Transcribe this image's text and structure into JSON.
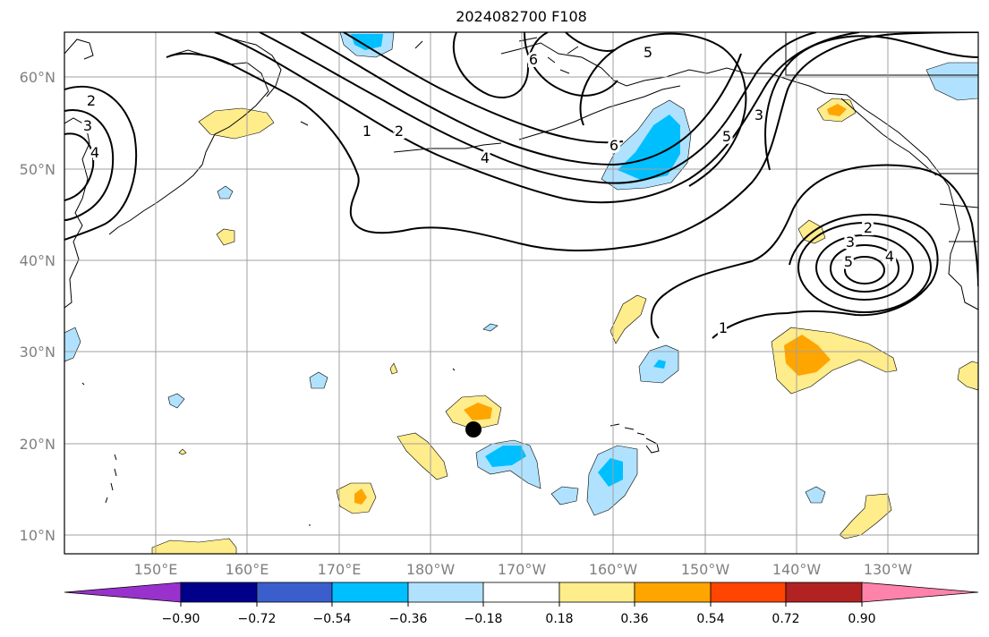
{
  "title": "2024082700 F108",
  "map": {
    "lat_labels": [
      "60°N",
      "50°N",
      "40°N",
      "30°N",
      "20°N",
      "10°N"
    ],
    "lon_labels": [
      "150°E",
      "160°E",
      "170°E",
      "180°W",
      "170°W",
      "160°W",
      "150°W",
      "140°W",
      "130°W"
    ],
    "contour_labels": [
      "2",
      "3",
      "4",
      "1",
      "2",
      "4",
      "6",
      "6",
      "5",
      "5",
      "3",
      "2",
      "3",
      "4",
      "5",
      "1"
    ],
    "gridlines": true,
    "marker": "storm-center-dot"
  },
  "colorbar": {
    "colors": [
      "#9932cc",
      "#00008b",
      "#3a5fcd",
      "#00bfff",
      "#b0e2ff",
      "#ffffff",
      "#ffec8b",
      "#ffa500",
      "#ff4500",
      "#b22222",
      "#ff82ab"
    ],
    "ticks": [
      "−0.90",
      "−0.72",
      "−0.54",
      "−0.36",
      "−0.18",
      "0.18",
      "0.36",
      "0.54",
      "0.72",
      "0.90"
    ]
  }
}
